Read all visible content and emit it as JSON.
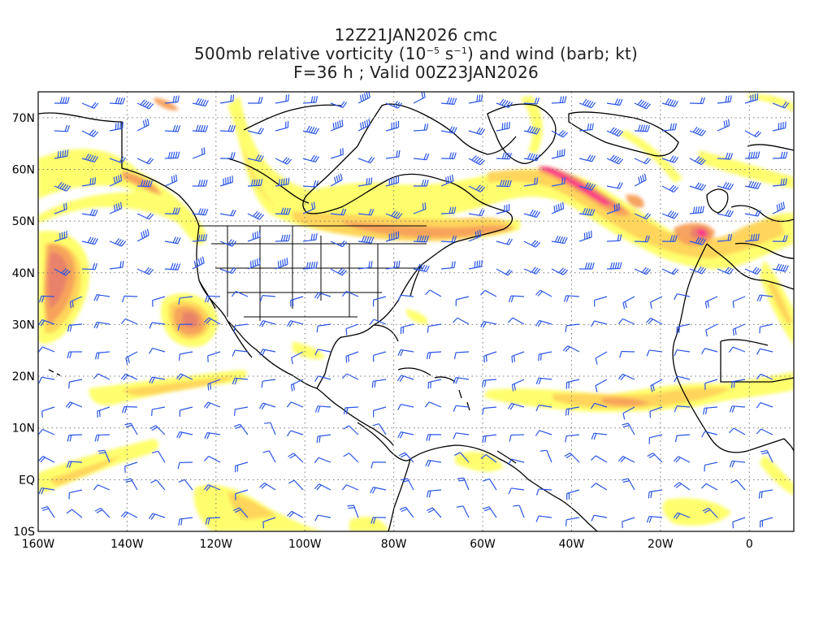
{
  "title": {
    "line1": "12Z21JAN2026 cmc",
    "line2_pre": "500mb relative vorticity (10",
    "line2_exp1": "−5",
    "line2_mid": " s",
    "line2_exp2": "−1",
    "line2_post": ") and wind (barb; kt)",
    "line3": "F=36 h ; Valid 00Z23JAN2026"
  },
  "map": {
    "lon_range": [
      -160,
      10
    ],
    "lat_range": [
      -10,
      75
    ],
    "lat_labels": [
      "70N",
      "60N",
      "50N",
      "40N",
      "30N",
      "20N",
      "10N",
      "EQ",
      "10S"
    ],
    "lon_labels": [
      "160W",
      "140W",
      "120W",
      "100W",
      "80W",
      "60W",
      "40W",
      "20W",
      "0"
    ],
    "gridlines": "dotted",
    "colors": {
      "shade_light": "#ffff66",
      "shade_mid": "#ffd35a",
      "shade_orange": "#f6a05a",
      "shade_dark": "#e8806a",
      "shade_max": "#ff2a8a",
      "barbs": "#2b55e6",
      "coast": "#000000"
    }
  }
}
